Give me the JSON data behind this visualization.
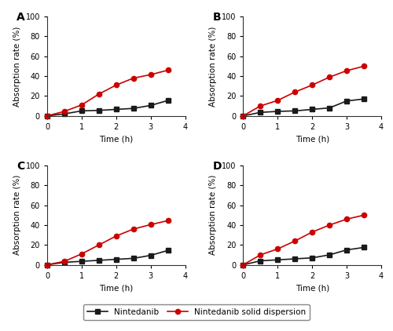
{
  "time": [
    0,
    0.5,
    1,
    1.5,
    2,
    2.5,
    3,
    3.5
  ],
  "panels": [
    {
      "label": "A",
      "nintedanib": [
        0,
        2.0,
        5.0,
        5.5,
        6.5,
        7.5,
        10.5,
        15.5
      ],
      "solid_disp": [
        0,
        4.5,
        11.0,
        22.0,
        31.0,
        38.0,
        41.5,
        46.0
      ]
    },
    {
      "label": "B",
      "nintedanib": [
        0,
        3.5,
        4.5,
        5.0,
        6.5,
        8.0,
        15.0,
        17.0
      ],
      "solid_disp": [
        0,
        10.0,
        15.5,
        24.0,
        31.0,
        39.0,
        45.5,
        50.0
      ]
    },
    {
      "label": "C",
      "nintedanib": [
        0,
        2.5,
        3.5,
        4.5,
        5.5,
        6.5,
        9.5,
        14.5
      ],
      "solid_disp": [
        0,
        3.5,
        11.0,
        20.0,
        29.0,
        36.0,
        40.5,
        44.5
      ]
    },
    {
      "label": "D",
      "nintedanib": [
        0,
        4.0,
        5.0,
        6.0,
        7.0,
        10.0,
        15.0,
        17.5
      ],
      "solid_disp": [
        0,
        10.0,
        16.0,
        24.0,
        33.0,
        40.0,
        46.0,
        50.0
      ]
    }
  ],
  "xlabel": "Time (h)",
  "ylabel": "Absorption rate (%)",
  "xlim": [
    0,
    4
  ],
  "ylim": [
    0,
    100
  ],
  "xticks": [
    0,
    1,
    2,
    3,
    4
  ],
  "yticks": [
    0,
    20,
    40,
    60,
    80,
    100
  ],
  "legend_labels": [
    "Nintedanib",
    "Nintedanib solid dispersion"
  ],
  "color_black": "#1a1a1a",
  "color_red": "#cc0000",
  "marker_black": "s",
  "marker_red": "o",
  "line_width": 1.2,
  "marker_size": 4.5,
  "font_size_label": 7.5,
  "font_size_tick": 7,
  "font_size_legend": 7.5,
  "font_size_panel": 10
}
